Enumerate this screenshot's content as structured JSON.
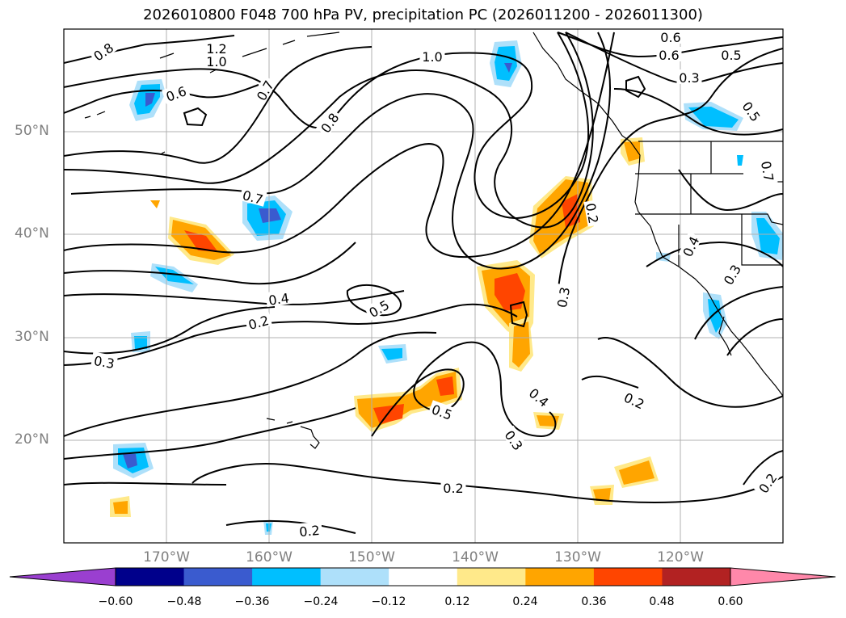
{
  "title": "2026010800 F048 700 hPa PV, precipitation PC (2026011200 - 2026011300)",
  "lat_labels": [
    "50°N",
    "40°N",
    "30°N",
    "20°N"
  ],
  "lon_labels": [
    "170°W",
    "160°W",
    "150°W",
    "140°W",
    "130°W",
    "120°W"
  ],
  "colorbar": {
    "ticks": [
      "−0.60",
      "−0.48",
      "−0.36",
      "−0.24",
      "−0.12",
      "0.12",
      "0.24",
      "0.36",
      "0.48",
      "0.60"
    ],
    "colors": [
      "#9a3fd0",
      "#00008b",
      "#3a5bcf",
      "#00bfff",
      "#aee0fa",
      "#ffffff",
      "#ffe98a",
      "#ffa500",
      "#ff4500",
      "#b22222",
      "#ff88aa"
    ]
  },
  "contour_labels": [
    "1.2",
    "1.0",
    "0.8",
    "0.6",
    "0.7",
    "1.0",
    "0.8",
    "0.7",
    "0.6",
    "0.6",
    "0.5",
    "0.3",
    "0.5",
    "0.7",
    "0.2",
    "0.4",
    "0.3",
    "0.2",
    "0.5",
    "0.3",
    "0.5",
    "0.4",
    "0.3",
    "0.2",
    "0.2",
    "0.2",
    "0.2",
    "0.3",
    "0.4"
  ]
}
